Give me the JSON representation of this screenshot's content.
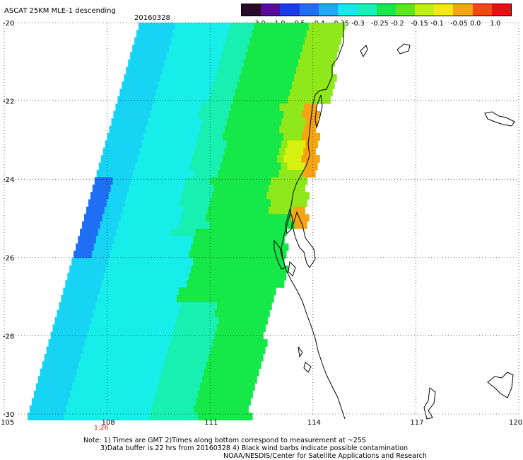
{
  "header": {
    "title": "ASCAT 25KM MLE-1 descending",
    "date": "20160328"
  },
  "colorbar": {
    "labels": [
      "-3.0",
      "-1.0",
      "-0.5",
      "-0.4",
      "-0.35",
      "-0.3",
      "-0.25",
      "-0.2",
      "-0.15",
      "-0.1",
      "-0.05",
      "0.0",
      "1.0"
    ],
    "colors": [
      "#2a0a2a",
      "#5a0a9a",
      "#1a3ce6",
      "#1f6ff5",
      "#20a8f7",
      "#17e8ef",
      "#17f0b8",
      "#16e84a",
      "#5ae81a",
      "#bff012",
      "#f4e80e",
      "#f5a514",
      "#ef4b10",
      "#e81010"
    ]
  },
  "map": {
    "lat_labels": [
      "-20",
      "-22",
      "-24",
      "-26",
      "-28",
      "-30"
    ],
    "lon_labels": [
      "105",
      "108",
      "111",
      "114",
      "117",
      "120"
    ],
    "time_label": "1:26",
    "swath_colors": {
      "far_west": "#1f6ff5",
      "west": "#18d4f4",
      "cyan": "#17eeea",
      "teal": "#17f0b0",
      "green": "#16e84a",
      "yellowgreen": "#8ee81a",
      "yellow": "#d6f010",
      "orange": "#f5a514",
      "land": "#ffffff",
      "coast": "#000000"
    }
  },
  "notes": {
    "line1": "Note: 1) Times are GMT 2)Times along bottom correspond to measurement at ~25S",
    "line2": "3)Data buffer is 22 hrs from 20160328 4) Black wind barbs indicate possible contamination",
    "line3": "NOAA/NESDIS/Center for Satellite Applications and Research"
  }
}
